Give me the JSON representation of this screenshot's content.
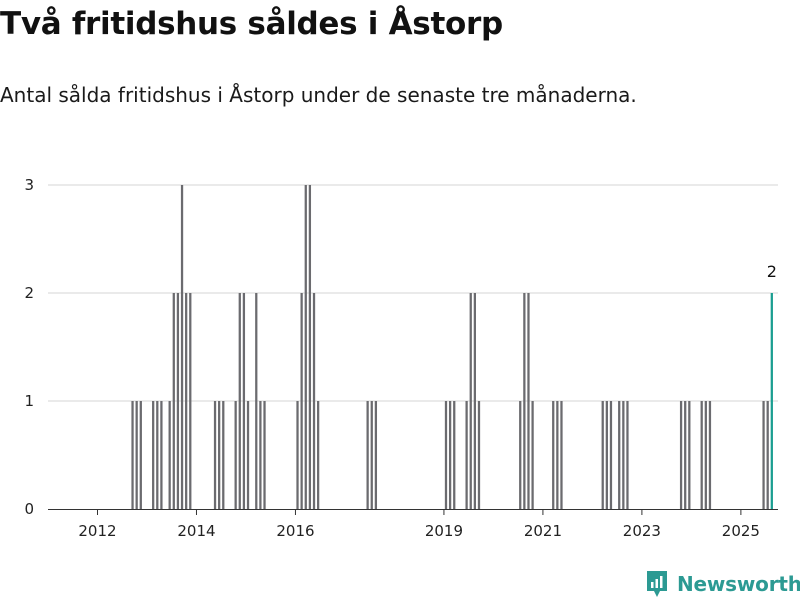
{
  "title": "Två fritidshus såldes i Åstorp",
  "subtitle": "Antal sålda fritidshus i Åstorp under de senaste tre månaderna.",
  "brand": "Newsworthy",
  "colors": {
    "bar": "#6b6b6f",
    "highlight": "#1a9e91",
    "grid": "#d6d6d6",
    "brand": "#2c9a93"
  },
  "chart_data": {
    "type": "bar",
    "title": "Två fritidshus såldes i Åstorp",
    "subtitle": "Antal sålda fritidshus i Åstorp under de senaste tre månaderna.",
    "xlabel": "",
    "ylabel": "",
    "xlim": [
      "2011-01",
      "2025-09"
    ],
    "ylim": [
      0,
      3
    ],
    "yticks": [
      0,
      1,
      2,
      3
    ],
    "xticks": [
      "2012",
      "2014",
      "2016",
      "2019",
      "2021",
      "2023",
      "2025"
    ],
    "grid": true,
    "points": [
      {
        "x": "2012-09",
        "value": 1
      },
      {
        "x": "2012-10",
        "value": 1
      },
      {
        "x": "2012-11",
        "value": 1
      },
      {
        "x": "2013-02",
        "value": 1
      },
      {
        "x": "2013-03",
        "value": 1
      },
      {
        "x": "2013-04",
        "value": 1
      },
      {
        "x": "2013-06",
        "value": 1
      },
      {
        "x": "2013-07",
        "value": 2
      },
      {
        "x": "2013-08",
        "value": 2
      },
      {
        "x": "2013-09",
        "value": 3
      },
      {
        "x": "2013-10",
        "value": 2
      },
      {
        "x": "2013-11",
        "value": 2
      },
      {
        "x": "2014-05",
        "value": 1
      },
      {
        "x": "2014-06",
        "value": 1
      },
      {
        "x": "2014-07",
        "value": 1
      },
      {
        "x": "2014-10",
        "value": 1
      },
      {
        "x": "2014-11",
        "value": 2
      },
      {
        "x": "2014-12",
        "value": 2
      },
      {
        "x": "2015-01",
        "value": 1
      },
      {
        "x": "2015-03",
        "value": 2
      },
      {
        "x": "2015-04",
        "value": 1
      },
      {
        "x": "2015-05",
        "value": 1
      },
      {
        "x": "2016-01",
        "value": 1
      },
      {
        "x": "2016-02",
        "value": 2
      },
      {
        "x": "2016-03",
        "value": 3
      },
      {
        "x": "2016-04",
        "value": 3
      },
      {
        "x": "2016-05",
        "value": 2
      },
      {
        "x": "2016-06",
        "value": 1
      },
      {
        "x": "2017-06",
        "value": 1
      },
      {
        "x": "2017-07",
        "value": 1
      },
      {
        "x": "2017-08",
        "value": 1
      },
      {
        "x": "2019-01",
        "value": 1
      },
      {
        "x": "2019-02",
        "value": 1
      },
      {
        "x": "2019-03",
        "value": 1
      },
      {
        "x": "2019-06",
        "value": 1
      },
      {
        "x": "2019-07",
        "value": 2
      },
      {
        "x": "2019-08",
        "value": 2
      },
      {
        "x": "2019-09",
        "value": 1
      },
      {
        "x": "2020-07",
        "value": 1
      },
      {
        "x": "2020-08",
        "value": 2
      },
      {
        "x": "2020-09",
        "value": 2
      },
      {
        "x": "2020-10",
        "value": 1
      },
      {
        "x": "2021-03",
        "value": 1
      },
      {
        "x": "2021-04",
        "value": 1
      },
      {
        "x": "2021-05",
        "value": 1
      },
      {
        "x": "2022-03",
        "value": 1
      },
      {
        "x": "2022-04",
        "value": 1
      },
      {
        "x": "2022-05",
        "value": 1
      },
      {
        "x": "2022-07",
        "value": 1
      },
      {
        "x": "2022-08",
        "value": 1
      },
      {
        "x": "2022-09",
        "value": 1
      },
      {
        "x": "2023-10",
        "value": 1
      },
      {
        "x": "2023-11",
        "value": 1
      },
      {
        "x": "2023-12",
        "value": 1
      },
      {
        "x": "2024-03",
        "value": 1
      },
      {
        "x": "2024-04",
        "value": 1
      },
      {
        "x": "2024-05",
        "value": 1
      },
      {
        "x": "2025-06",
        "value": 1
      },
      {
        "x": "2025-07",
        "value": 1
      },
      {
        "x": "2025-08",
        "value": 2,
        "highlight": true,
        "label": "2"
      }
    ]
  }
}
